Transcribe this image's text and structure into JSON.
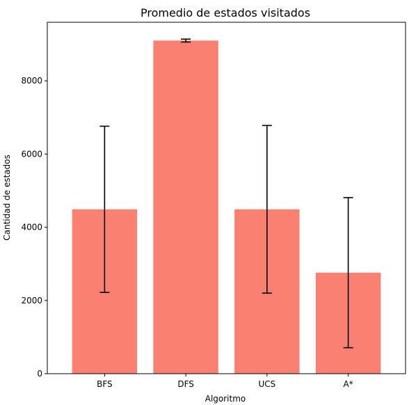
{
  "chart_data": {
    "type": "bar",
    "title": "Promedio de estados visitados",
    "xlabel": "Algoritmo",
    "ylabel": "Cantidad de estados",
    "categories": [
      "BFS",
      "DFS",
      "UCS",
      "A*"
    ],
    "values": [
      4490,
      9100,
      4490,
      2760
    ],
    "errors": [
      2270,
      40,
      2290,
      2050
    ],
    "ylim": [
      0,
      9600
    ],
    "yticks": [
      0,
      2000,
      4000,
      6000,
      8000
    ],
    "ytick_labels": [
      "0",
      "2000",
      "4000",
      "6000",
      "8000"
    ],
    "grid": false,
    "bar_color": "#fa8072",
    "error_color": "#000000"
  }
}
